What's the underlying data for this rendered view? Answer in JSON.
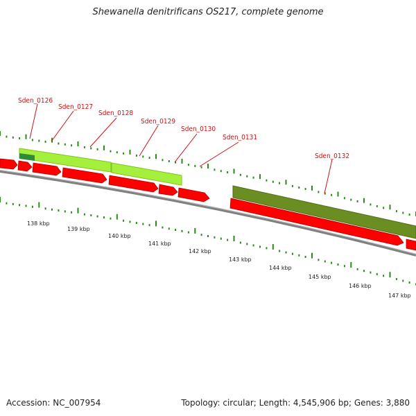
{
  "title": "Shewanella denitrificans OS217, complete genome",
  "footer": {
    "accession": "Accession: NC_007954",
    "summary": "Topology: circular; Length: 4,545,906 bp; Genes: 3,880"
  },
  "colors": {
    "forward_cds": "#ff0000",
    "backbone": "#808080",
    "light_green_feature": "#a4f03c",
    "dark_olive_feature": "#6b8e23",
    "dark_green_feature": "#2e8b3a",
    "tick_green": "#2a8a1a",
    "label_red": "#d01010"
  },
  "genes": [
    {
      "name": "Sden_0126"
    },
    {
      "name": "Sden_0127"
    },
    {
      "name": "Sden_0128"
    },
    {
      "name": "Sden_0129"
    },
    {
      "name": "Sden_0130"
    },
    {
      "name": "Sden_0131"
    },
    {
      "name": "Sden_0132"
    }
  ],
  "scale": {
    "labels": [
      "138 kbp",
      "139 kbp",
      "140 kbp",
      "141 kbp",
      "142 kbp",
      "143 kbp",
      "144 kbp",
      "145 kbp",
      "146 kbp",
      "147 kbp"
    ]
  }
}
